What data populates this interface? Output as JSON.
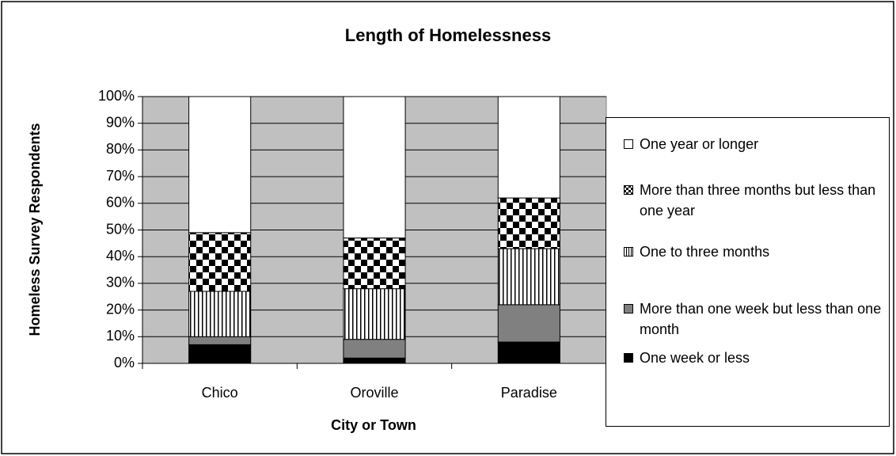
{
  "chart_data": {
    "type": "stacked-bar",
    "title": "Length of Homelessness",
    "x_label": "City or Town",
    "y_label": "Homeless Survey Respondents",
    "categories": [
      "Chico",
      "Oroville",
      "Paradise"
    ],
    "series": [
      {
        "name": "One week or less",
        "color": "#000000",
        "pattern": "solid",
        "values": [
          7,
          2,
          8
        ]
      },
      {
        "name": "More than one week but less than one month",
        "color": "#808080",
        "pattern": "solid",
        "values": [
          3,
          7,
          14
        ]
      },
      {
        "name": "One to three months",
        "color": "#ffffff",
        "pattern": "vertical-stripes",
        "values": [
          17,
          19,
          21
        ]
      },
      {
        "name": "More than three months but less than one year",
        "color": "#ffffff",
        "pattern": "checker",
        "values": [
          22,
          19,
          19
        ]
      },
      {
        "name": "One year or longer",
        "color": "#ffffff",
        "pattern": "solid",
        "values": [
          51,
          53,
          38
        ]
      }
    ],
    "ylim": [
      0,
      100
    ],
    "yticks": [
      {
        "value": 0,
        "label": "0%"
      },
      {
        "value": 10,
        "label": "10%"
      },
      {
        "value": 20,
        "label": "20%"
      },
      {
        "value": 30,
        "label": "30%"
      },
      {
        "value": 40,
        "label": "40%"
      },
      {
        "value": 50,
        "label": "50%"
      },
      {
        "value": 60,
        "label": "60%"
      },
      {
        "value": 70,
        "label": "70%"
      },
      {
        "value": 80,
        "label": "80%"
      },
      {
        "value": 90,
        "label": "90%"
      },
      {
        "value": 100,
        "label": "100%"
      }
    ],
    "grid": true,
    "legend": "right"
  }
}
